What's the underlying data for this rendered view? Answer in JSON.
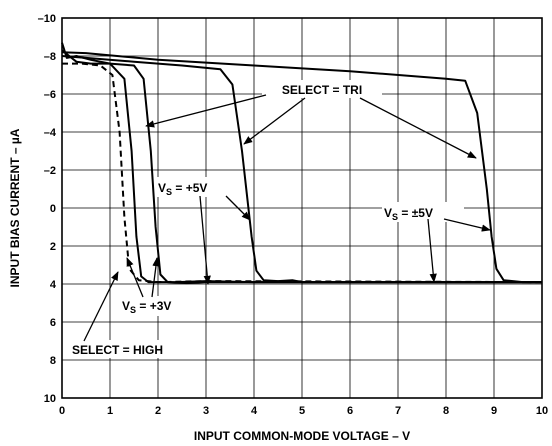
{
  "chart_data": {
    "type": "line",
    "xlabel": "INPUT COMMON-MODE VOLTAGE – V",
    "ylabel": "INPUT BIAS CURRENT – µA",
    "xlim": [
      0,
      10
    ],
    "ylim": [
      10,
      -10
    ],
    "grid": true,
    "x_ticks": [
      "0",
      "1",
      "2",
      "3",
      "4",
      "5",
      "6",
      "7",
      "8",
      "9",
      "10"
    ],
    "y_ticks": [
      "–10",
      "–8",
      "–6",
      "–4",
      "–2",
      "0",
      "2",
      "4",
      "6",
      "8",
      "10"
    ],
    "series": [
      {
        "dashed": false,
        "points": [
          [
            0,
            -8.7
          ],
          [
            0.1,
            -7.9
          ],
          [
            0.3,
            -8.0
          ],
          [
            0.6,
            -7.8
          ],
          [
            1.0,
            -7.6
          ],
          [
            1.3,
            -6.8
          ],
          [
            1.45,
            -3.0
          ],
          [
            1.55,
            1.5
          ],
          [
            1.65,
            3.6
          ],
          [
            1.8,
            3.9
          ],
          [
            2.4,
            3.9
          ],
          [
            3.0,
            3.85
          ],
          [
            4.0,
            3.9
          ],
          [
            6.0,
            3.9
          ],
          [
            10,
            3.9
          ]
        ]
      },
      {
        "dashed": false,
        "points": [
          [
            0,
            -8.3
          ],
          [
            0.3,
            -7.7
          ],
          [
            0.6,
            -7.6
          ],
          [
            1.0,
            -7.6
          ],
          [
            1.5,
            -7.5
          ],
          [
            1.7,
            -6.8
          ],
          [
            1.85,
            -3.0
          ],
          [
            1.95,
            1.0
          ],
          [
            2.05,
            3.5
          ],
          [
            2.2,
            3.9
          ],
          [
            2.6,
            3.95
          ],
          [
            3.0,
            3.9
          ],
          [
            10,
            3.9
          ]
        ]
      },
      {
        "dashed": false,
        "points": [
          [
            0,
            -8.0
          ],
          [
            0.5,
            -7.9
          ],
          [
            1.5,
            -7.7
          ],
          [
            2.5,
            -7.5
          ],
          [
            3.3,
            -7.3
          ],
          [
            3.55,
            -6.5
          ],
          [
            3.75,
            -3.0
          ],
          [
            3.95,
            1.5
          ],
          [
            4.05,
            3.3
          ],
          [
            4.2,
            3.8
          ],
          [
            4.5,
            3.85
          ],
          [
            4.8,
            3.8
          ],
          [
            5.0,
            3.9
          ],
          [
            10,
            3.9
          ]
        ]
      },
      {
        "dashed": false,
        "points": [
          [
            0,
            -8.2
          ],
          [
            0.5,
            -8.15
          ],
          [
            2.0,
            -7.8
          ],
          [
            4.0,
            -7.5
          ],
          [
            6.0,
            -7.2
          ],
          [
            8.0,
            -6.8
          ],
          [
            8.4,
            -6.7
          ],
          [
            8.65,
            -5.0
          ],
          [
            8.85,
            -1.0
          ],
          [
            8.95,
            1.5
          ],
          [
            9.05,
            3.2
          ],
          [
            9.2,
            3.8
          ],
          [
            9.6,
            3.9
          ],
          [
            10,
            3.9
          ]
        ]
      },
      {
        "dashed": true,
        "points": [
          [
            0,
            -7.6
          ],
          [
            0.4,
            -7.6
          ],
          [
            0.8,
            -7.5
          ],
          [
            1.05,
            -7.0
          ],
          [
            1.2,
            -4.0
          ],
          [
            1.3,
            0.5
          ],
          [
            1.4,
            3.2
          ],
          [
            1.6,
            3.8
          ],
          [
            2.0,
            3.9
          ],
          [
            3.0,
            3.85
          ],
          [
            10,
            3.9
          ]
        ]
      }
    ],
    "annotations": {
      "select_tri": "SELECT = TRI",
      "select_high": "SELECT = HIGH",
      "vs_5v_main": "V",
      "vs_5v_sub": "S",
      "vs_5v_tail": " = +5V",
      "vs_pm5v_main": "V",
      "vs_pm5v_sub": "S",
      "vs_pm5v_tail": " = ±5V",
      "vs_3v_main": "V",
      "vs_3v_sub": "S",
      "vs_3v_tail": " = +3V"
    }
  }
}
